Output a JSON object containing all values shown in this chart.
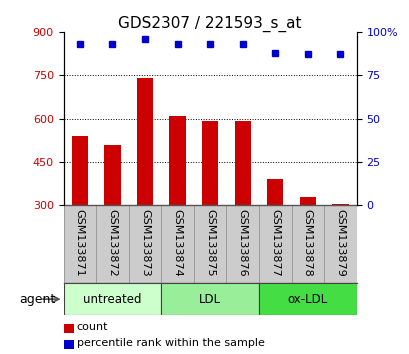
{
  "title": "GDS2307 / 221593_s_at",
  "samples": [
    "GSM133871",
    "GSM133872",
    "GSM133873",
    "GSM133874",
    "GSM133875",
    "GSM133876",
    "GSM133877",
    "GSM133878",
    "GSM133879"
  ],
  "counts": [
    540,
    510,
    740,
    608,
    590,
    590,
    390,
    330,
    305
  ],
  "percentiles": [
    93,
    93,
    96,
    93,
    93,
    93,
    88,
    87,
    87
  ],
  "bar_color": "#cc0000",
  "dot_color": "#0000cc",
  "ylim_left": [
    300,
    900
  ],
  "ylim_right": [
    0,
    100
  ],
  "yticks_left": [
    300,
    450,
    600,
    750,
    900
  ],
  "yticks_right": [
    0,
    25,
    50,
    75,
    100
  ],
  "ytick_labels_right": [
    "0",
    "25",
    "50",
    "75",
    "100%"
  ],
  "grid_values": [
    450,
    600,
    750
  ],
  "groups": [
    {
      "label": "untreated",
      "indices": [
        0,
        1,
        2
      ],
      "color": "#ccffcc"
    },
    {
      "label": "LDL",
      "indices": [
        3,
        4,
        5
      ],
      "color": "#99ee99"
    },
    {
      "label": "ox-LDL",
      "indices": [
        6,
        7,
        8
      ],
      "color": "#44dd44"
    }
  ],
  "agent_label": "agent",
  "legend_count_label": "count",
  "legend_pct_label": "percentile rank within the sample",
  "background_plot": "#ffffff",
  "background_label_area": "#cccccc",
  "title_fontsize": 11,
  "axis_label_fontsize": 8,
  "tick_fontsize": 8
}
